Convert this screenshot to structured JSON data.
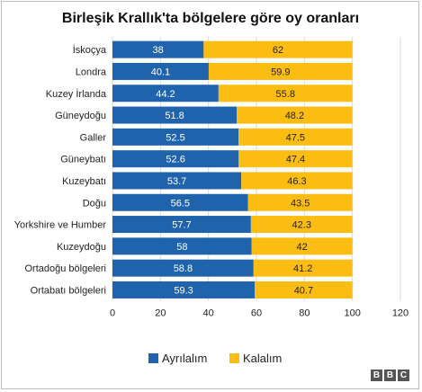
{
  "chart_data": {
    "type": "bar",
    "orientation": "horizontal",
    "stacked": true,
    "title": "Birleşik Krallık'ta bölgelere göre oy oranları",
    "categories": [
      "İskoçya",
      "Londra",
      "Kuzey İrlanda",
      "Güneydoğu",
      "Galler",
      "Güneybatı",
      "Kuzeybatı",
      "Doğu",
      "Yorkshire ve Humber",
      "Kuzeydoğu",
      "Ortadoğu bölgeleri",
      "Ortabatı bölgeleri"
    ],
    "series": [
      {
        "name": "Ayrılalım",
        "color": "#1f63ac",
        "label_color": "#ffffff",
        "values": [
          38,
          40.1,
          44.2,
          51.8,
          52.5,
          52.6,
          53.7,
          56.5,
          57.7,
          58,
          58.8,
          59.3
        ]
      },
      {
        "name": "Kalalım",
        "color": "#fcbd12",
        "label_color": "#222222",
        "values": [
          62,
          59.9,
          55.8,
          48.2,
          47.5,
          47.4,
          46.3,
          43.5,
          42.3,
          42,
          41.2,
          40.7
        ]
      }
    ],
    "xlim": [
      0,
      120
    ],
    "xticks": [
      "0",
      "20",
      "40",
      "60",
      "80",
      "100",
      "120"
    ],
    "xgrid": true,
    "legend_position": "bottom"
  },
  "logo": {
    "letters": [
      "B",
      "B",
      "C"
    ]
  }
}
